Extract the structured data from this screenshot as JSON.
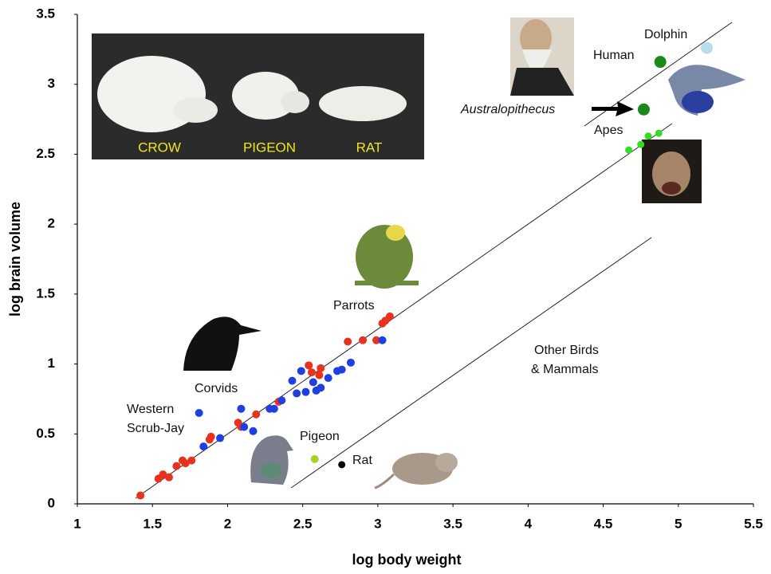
{
  "chart_data": {
    "type": "scatter",
    "xlabel": "log body weight",
    "ylabel": "log brain volume",
    "xlim": [
      1,
      5.5
    ],
    "ylim": [
      0,
      3.5
    ],
    "xticks": [
      1,
      1.5,
      2,
      2.5,
      3,
      3.5,
      4,
      4.5,
      5,
      5.5
    ],
    "yticks": [
      0,
      0.5,
      1,
      1.5,
      2,
      2.5,
      3,
      3.5
    ],
    "series": [
      {
        "color": "#e8321e",
        "size": 5,
        "x": [
          1.42,
          1.54,
          1.57,
          1.61,
          1.66,
          1.7,
          1.72,
          1.76,
          1.88,
          1.89,
          2.07,
          2.09,
          2.19,
          2.34,
          2.54,
          2.56,
          2.61,
          2.62,
          2.8,
          2.9,
          2.99,
          3.03,
          3.05,
          3.08
        ],
        "values": [
          0.06,
          0.18,
          0.21,
          0.19,
          0.27,
          0.31,
          0.29,
          0.31,
          0.46,
          0.48,
          0.58,
          0.55,
          0.64,
          0.73,
          0.99,
          0.94,
          0.92,
          0.97,
          1.16,
          1.17,
          1.17,
          1.29,
          1.31,
          1.34
        ]
      },
      {
        "color": "#1f3fe0",
        "size": 5,
        "x": [
          1.81,
          1.84,
          1.95,
          2.09,
          2.11,
          2.17,
          2.28,
          2.31,
          2.36,
          2.43,
          2.46,
          2.49,
          2.52,
          2.57,
          2.59,
          2.62,
          2.67,
          2.73,
          2.76,
          2.82,
          3.03
        ],
        "values": [
          0.65,
          0.41,
          0.47,
          0.68,
          0.55,
          0.52,
          0.68,
          0.68,
          0.74,
          0.88,
          0.79,
          0.95,
          0.8,
          0.87,
          0.81,
          0.83,
          0.9,
          0.95,
          0.96,
          1.01,
          1.17
        ]
      },
      {
        "color": "#33dd22",
        "size": 4.5,
        "x": [
          4.67,
          4.75,
          4.8,
          4.87
        ],
        "values": [
          2.53,
          2.57,
          2.63,
          2.65
        ]
      },
      {
        "color": "#1a8a1a",
        "size": 7.5,
        "x": [
          4.88
        ],
        "values": [
          3.16
        ]
      },
      {
        "color": "#b8dde8",
        "size": 7.5,
        "x": [
          5.19
        ],
        "values": [
          3.26
        ]
      },
      {
        "color": "#1a8a1a",
        "size": 7.5,
        "x": [
          4.77
        ],
        "values": [
          2.82
        ]
      },
      {
        "color": "#a8d02a",
        "size": 5,
        "x": [
          2.58
        ],
        "values": [
          0.32
        ]
      },
      {
        "color": "#000000",
        "size": 4.5,
        "x": [
          2.76
        ],
        "values": [
          0.28
        ]
      }
    ],
    "annotations": {
      "dolphin": "Dolphin",
      "human": "Human",
      "australopithecus": "Australopithecus",
      "apes": "Apes",
      "parrots": "Parrots",
      "corvids": "Corvids",
      "scrub_jay": [
        "Western",
        "Scrub-Jay"
      ],
      "pigeon": "Pigeon",
      "rat": "Rat",
      "other": [
        "Other Birds",
        "& Mammals"
      ]
    },
    "photo_labels": [
      "CROW",
      "PIGEON",
      "RAT"
    ]
  }
}
